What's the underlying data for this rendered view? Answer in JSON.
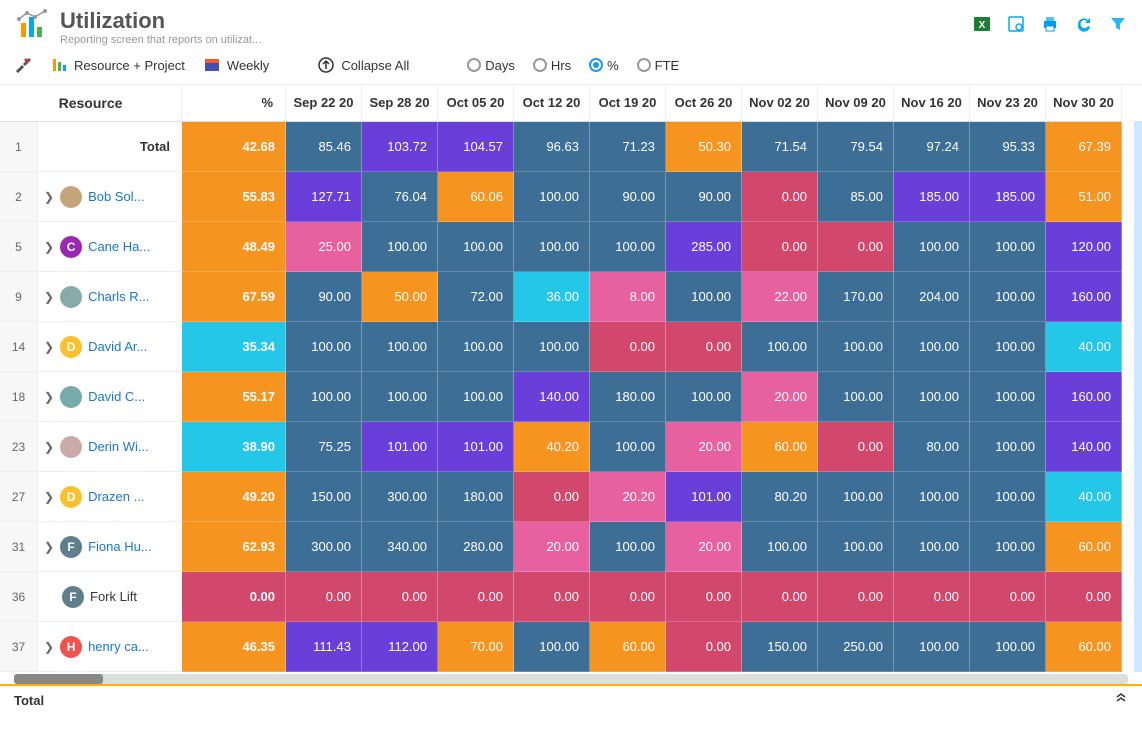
{
  "page": {
    "title": "Utilization",
    "subtitle": "Reporting screen that reports on utilizat..."
  },
  "toolbar": {
    "resource_project": "Resource + Project",
    "period": "Weekly",
    "collapse": "Collapse All"
  },
  "radios": {
    "options": [
      "Days",
      "Hrs",
      "%",
      "FTE"
    ],
    "selected": "%"
  },
  "colors": {
    "orange": "#f5941f",
    "blue": "#3d6e96",
    "purple": "#6a3fd9",
    "pink": "#e7609f",
    "magenta": "#d1486c",
    "cyan": "#25c7e8",
    "link": "#1976d2",
    "footer_border": "#ffb300"
  },
  "columns": {
    "resource": "Resource",
    "pct": "%",
    "dates": [
      "Sep 22 20",
      "Sep 28 20",
      "Oct 05 20",
      "Oct 12 20",
      "Oct 19 20",
      "Oct 26 20",
      "Nov 02 20",
      "Nov 09 20",
      "Nov 16 20",
      "Nov 23 20",
      "Nov 30 20"
    ]
  },
  "rows": [
    {
      "num": "1",
      "type": "total",
      "name": "Total",
      "pct_cell": {
        "v": "42.68",
        "c": "orange"
      },
      "cells": [
        {
          "v": "85.46",
          "c": "blue"
        },
        {
          "v": "103.72",
          "c": "purple"
        },
        {
          "v": "104.57",
          "c": "purple"
        },
        {
          "v": "96.63",
          "c": "blue"
        },
        {
          "v": "71.23",
          "c": "blue"
        },
        {
          "v": "50.30",
          "c": "orange"
        },
        {
          "v": "71.54",
          "c": "blue"
        },
        {
          "v": "79.54",
          "c": "blue"
        },
        {
          "v": "97.24",
          "c": "blue"
        },
        {
          "v": "95.33",
          "c": "blue"
        },
        {
          "v": "67.39",
          "c": "orange"
        }
      ]
    },
    {
      "num": "2",
      "type": "person",
      "name": "Bob Sol...",
      "avatar": {
        "kind": "img",
        "bg": "#c4a57a"
      },
      "pct_cell": {
        "v": "55.83",
        "c": "orange"
      },
      "cells": [
        {
          "v": "127.71",
          "c": "purple"
        },
        {
          "v": "76.04",
          "c": "blue"
        },
        {
          "v": "60.06",
          "c": "orange"
        },
        {
          "v": "100.00",
          "c": "blue"
        },
        {
          "v": "90.00",
          "c": "blue"
        },
        {
          "v": "90.00",
          "c": "blue"
        },
        {
          "v": "0.00",
          "c": "magenta"
        },
        {
          "v": "85.00",
          "c": "blue"
        },
        {
          "v": "185.00",
          "c": "purple"
        },
        {
          "v": "185.00",
          "c": "purple"
        },
        {
          "v": "51.00",
          "c": "orange"
        }
      ]
    },
    {
      "num": "5",
      "type": "person",
      "name": "Cane Ha...",
      "avatar": {
        "kind": "letter",
        "letter": "C",
        "bg": "#9c27b0"
      },
      "pct_cell": {
        "v": "48.49",
        "c": "orange"
      },
      "cells": [
        {
          "v": "25.00",
          "c": "pink"
        },
        {
          "v": "100.00",
          "c": "blue"
        },
        {
          "v": "100.00",
          "c": "blue"
        },
        {
          "v": "100.00",
          "c": "blue"
        },
        {
          "v": "100.00",
          "c": "blue"
        },
        {
          "v": "285.00",
          "c": "purple"
        },
        {
          "v": "0.00",
          "c": "magenta"
        },
        {
          "v": "0.00",
          "c": "magenta"
        },
        {
          "v": "100.00",
          "c": "blue"
        },
        {
          "v": "100.00",
          "c": "blue"
        },
        {
          "v": "120.00",
          "c": "purple"
        }
      ]
    },
    {
      "num": "9",
      "type": "person",
      "name": "Charls R...",
      "avatar": {
        "kind": "img",
        "bg": "#8aa"
      },
      "pct_cell": {
        "v": "67.59",
        "c": "orange"
      },
      "cells": [
        {
          "v": "90.00",
          "c": "blue"
        },
        {
          "v": "50.00",
          "c": "orange"
        },
        {
          "v": "72.00",
          "c": "blue"
        },
        {
          "v": "36.00",
          "c": "cyan"
        },
        {
          "v": "8.00",
          "c": "pink"
        },
        {
          "v": "100.00",
          "c": "blue"
        },
        {
          "v": "22.00",
          "c": "pink"
        },
        {
          "v": "170.00",
          "c": "blue"
        },
        {
          "v": "204.00",
          "c": "blue"
        },
        {
          "v": "100.00",
          "c": "blue"
        },
        {
          "v": "160.00",
          "c": "purple"
        }
      ]
    },
    {
      "num": "14",
      "type": "person",
      "name": "David Ar...",
      "avatar": {
        "kind": "letter",
        "letter": "D",
        "bg": "#fbc02d"
      },
      "pct_cell": {
        "v": "35.34",
        "c": "cyan"
      },
      "cells": [
        {
          "v": "100.00",
          "c": "blue"
        },
        {
          "v": "100.00",
          "c": "blue"
        },
        {
          "v": "100.00",
          "c": "blue"
        },
        {
          "v": "100.00",
          "c": "blue"
        },
        {
          "v": "0.00",
          "c": "magenta"
        },
        {
          "v": "0.00",
          "c": "magenta"
        },
        {
          "v": "100.00",
          "c": "blue"
        },
        {
          "v": "100.00",
          "c": "blue"
        },
        {
          "v": "100.00",
          "c": "blue"
        },
        {
          "v": "100.00",
          "c": "blue"
        },
        {
          "v": "40.00",
          "c": "cyan"
        }
      ]
    },
    {
      "num": "18",
      "type": "person",
      "name": "David C...",
      "avatar": {
        "kind": "img",
        "bg": "#7aa"
      },
      "pct_cell": {
        "v": "55.17",
        "c": "orange"
      },
      "cells": [
        {
          "v": "100.00",
          "c": "blue"
        },
        {
          "v": "100.00",
          "c": "blue"
        },
        {
          "v": "100.00",
          "c": "blue"
        },
        {
          "v": "140.00",
          "c": "purple"
        },
        {
          "v": "180.00",
          "c": "blue"
        },
        {
          "v": "100.00",
          "c": "blue"
        },
        {
          "v": "20.00",
          "c": "pink"
        },
        {
          "v": "100.00",
          "c": "blue"
        },
        {
          "v": "100.00",
          "c": "blue"
        },
        {
          "v": "100.00",
          "c": "blue"
        },
        {
          "v": "160.00",
          "c": "purple"
        }
      ]
    },
    {
      "num": "23",
      "type": "person",
      "name": "Derin Wi...",
      "avatar": {
        "kind": "img",
        "bg": "#caa"
      },
      "pct_cell": {
        "v": "38.90",
        "c": "cyan"
      },
      "cells": [
        {
          "v": "75.25",
          "c": "blue"
        },
        {
          "v": "101.00",
          "c": "purple"
        },
        {
          "v": "101.00",
          "c": "purple"
        },
        {
          "v": "40.20",
          "c": "orange"
        },
        {
          "v": "100.00",
          "c": "blue"
        },
        {
          "v": "20.00",
          "c": "pink"
        },
        {
          "v": "60.00",
          "c": "orange"
        },
        {
          "v": "0.00",
          "c": "magenta"
        },
        {
          "v": "80.00",
          "c": "blue"
        },
        {
          "v": "100.00",
          "c": "blue"
        },
        {
          "v": "140.00",
          "c": "purple"
        }
      ]
    },
    {
      "num": "27",
      "type": "person",
      "name": "Drazen ...",
      "avatar": {
        "kind": "letter",
        "letter": "D",
        "bg": "#fbc02d"
      },
      "pct_cell": {
        "v": "49.20",
        "c": "orange"
      },
      "cells": [
        {
          "v": "150.00",
          "c": "blue"
        },
        {
          "v": "300.00",
          "c": "blue"
        },
        {
          "v": "180.00",
          "c": "blue"
        },
        {
          "v": "0.00",
          "c": "magenta"
        },
        {
          "v": "20.20",
          "c": "pink"
        },
        {
          "v": "101.00",
          "c": "purple"
        },
        {
          "v": "80.20",
          "c": "blue"
        },
        {
          "v": "100.00",
          "c": "blue"
        },
        {
          "v": "100.00",
          "c": "blue"
        },
        {
          "v": "100.00",
          "c": "blue"
        },
        {
          "v": "40.00",
          "c": "cyan"
        }
      ]
    },
    {
      "num": "31",
      "type": "person",
      "name": "Fiona Hu...",
      "avatar": {
        "kind": "letter",
        "letter": "F",
        "bg": "#607d8b"
      },
      "pct_cell": {
        "v": "62.93",
        "c": "orange"
      },
      "cells": [
        {
          "v": "300.00",
          "c": "blue"
        },
        {
          "v": "340.00",
          "c": "blue"
        },
        {
          "v": "280.00",
          "c": "blue"
        },
        {
          "v": "20.00",
          "c": "pink"
        },
        {
          "v": "100.00",
          "c": "blue"
        },
        {
          "v": "20.00",
          "c": "pink"
        },
        {
          "v": "100.00",
          "c": "blue"
        },
        {
          "v": "100.00",
          "c": "blue"
        },
        {
          "v": "100.00",
          "c": "blue"
        },
        {
          "v": "100.00",
          "c": "blue"
        },
        {
          "v": "60.00",
          "c": "orange"
        }
      ]
    },
    {
      "num": "36",
      "type": "item",
      "name": "Fork Lift",
      "avatar": {
        "kind": "letter",
        "letter": "F",
        "bg": "#607d8b"
      },
      "pct_cell": {
        "v": "0.00",
        "c": "magenta"
      },
      "cells": [
        {
          "v": "0.00",
          "c": "magenta"
        },
        {
          "v": "0.00",
          "c": "magenta"
        },
        {
          "v": "0.00",
          "c": "magenta"
        },
        {
          "v": "0.00",
          "c": "magenta"
        },
        {
          "v": "0.00",
          "c": "magenta"
        },
        {
          "v": "0.00",
          "c": "magenta"
        },
        {
          "v": "0.00",
          "c": "magenta"
        },
        {
          "v": "0.00",
          "c": "magenta"
        },
        {
          "v": "0.00",
          "c": "magenta"
        },
        {
          "v": "0.00",
          "c": "magenta"
        },
        {
          "v": "0.00",
          "c": "magenta"
        }
      ]
    },
    {
      "num": "37",
      "type": "person",
      "name": "henry ca...",
      "avatar": {
        "kind": "letter",
        "letter": "H",
        "bg": "#ef5350"
      },
      "pct_cell": {
        "v": "46.35",
        "c": "orange"
      },
      "cells": [
        {
          "v": "111.43",
          "c": "purple"
        },
        {
          "v": "112.00",
          "c": "purple"
        },
        {
          "v": "70.00",
          "c": "orange"
        },
        {
          "v": "100.00",
          "c": "blue"
        },
        {
          "v": "60.00",
          "c": "orange"
        },
        {
          "v": "0.00",
          "c": "magenta"
        },
        {
          "v": "150.00",
          "c": "blue"
        },
        {
          "v": "250.00",
          "c": "blue"
        },
        {
          "v": "100.00",
          "c": "blue"
        },
        {
          "v": "100.00",
          "c": "blue"
        },
        {
          "v": "60.00",
          "c": "orange"
        }
      ]
    }
  ],
  "footer": {
    "label": "Total"
  }
}
